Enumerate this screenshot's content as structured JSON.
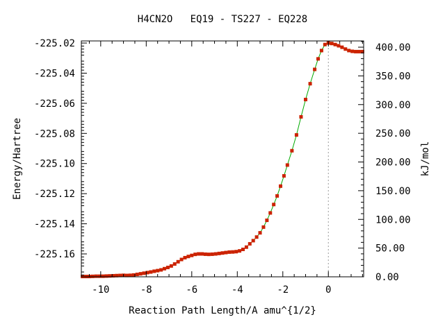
{
  "chart_data": {
    "type": "line",
    "title": "H4CN2O   EQ19 - TS227 - EQ228",
    "xlabel": "Reaction Path Length/A amu^{1/2}",
    "ylabel": "Energy/Hartree",
    "y2label": "kJ/mol",
    "xlim": [
      -10.85,
      1.55
    ],
    "ylim": [
      -225.1752,
      -225.0186
    ],
    "y2lim": [
      0,
      410.9
    ],
    "x_ticks": [
      "-10",
      "-8",
      "-6",
      "-4",
      "-2",
      "0"
    ],
    "y_ticks": [
      "-225.02",
      "-225.04",
      "-225.06",
      "-225.08",
      "-225.10",
      "-225.12",
      "-225.14",
      "-225.16"
    ],
    "y2_ticks": [
      "400.00",
      "350.00",
      "300.00",
      "250.00",
      "200.00",
      "150.00",
      "100.00",
      "50.00",
      "0.00"
    ],
    "ts_marker_x": 0,
    "line_color": "#00aa00",
    "point_color": "#cc2200",
    "dashed_color": "#999999",
    "series": [
      {
        "x": [
          -10.8,
          -10.65,
          -10.5,
          -10.35,
          -10.2,
          -10.05,
          -9.9,
          -9.75,
          -9.6,
          -9.45,
          -9.3,
          -9.15,
          -9.0,
          -8.85,
          -8.7,
          -8.55,
          -8.4,
          -8.25,
          -8.1,
          -7.95,
          -7.8,
          -7.65,
          -7.5,
          -7.35,
          -7.2,
          -7.05,
          -6.9,
          -6.75,
          -6.6,
          -6.45,
          -6.3,
          -6.15,
          -6.0,
          -5.85,
          -5.7,
          -5.55,
          -5.4,
          -5.25,
          -5.1,
          -4.95,
          -4.8,
          -4.65,
          -4.5,
          -4.35,
          -4.2,
          -4.05,
          -3.9,
          -3.75,
          -3.6,
          -3.45,
          -3.3,
          -3.15,
          -3.0,
          -2.85,
          -2.7,
          -2.55,
          -2.4,
          -2.25,
          -2.1,
          -1.95,
          -1.8,
          -1.6,
          -1.4,
          -1.2,
          -1.0,
          -0.8,
          -0.6,
          -0.45,
          -0.3,
          -0.15,
          0.0,
          0.15,
          0.3,
          0.45,
          0.6,
          0.75,
          0.9,
          1.05,
          1.2,
          1.35,
          1.5
        ],
        "y": [
          -225.175,
          -225.175,
          -225.175,
          -225.1749,
          -225.1748,
          -225.1748,
          -225.1748,
          -225.1747,
          -225.1746,
          -225.1745,
          -225.1744,
          -225.1743,
          -225.1742,
          -225.1743,
          -225.1742,
          -225.174,
          -225.1736,
          -225.1732,
          -225.1728,
          -225.1724,
          -225.172,
          -225.1715,
          -225.1711,
          -225.1706,
          -225.1698,
          -225.169,
          -225.168,
          -225.1667,
          -225.1652,
          -225.1637,
          -225.1625,
          -225.1617,
          -225.161,
          -225.1603,
          -225.16,
          -225.16,
          -225.1602,
          -225.1603,
          -225.1602,
          -225.16,
          -225.1597,
          -225.1594,
          -225.1591,
          -225.1588,
          -225.1587,
          -225.1585,
          -225.158,
          -225.157,
          -225.1555,
          -225.1533,
          -225.1512,
          -225.1488,
          -225.146,
          -225.1422,
          -225.1377,
          -225.1328,
          -225.1272,
          -225.1215,
          -225.115,
          -225.1082,
          -225.101,
          -225.0915,
          -225.081,
          -225.069,
          -225.0575,
          -225.047,
          -225.0375,
          -225.0305,
          -225.025,
          -225.021,
          -225.02,
          -225.0203,
          -225.021,
          -225.0218,
          -225.0228,
          -225.024,
          -225.025,
          -225.0255,
          -225.0257,
          -225.0257,
          -225.0257
        ]
      }
    ]
  }
}
